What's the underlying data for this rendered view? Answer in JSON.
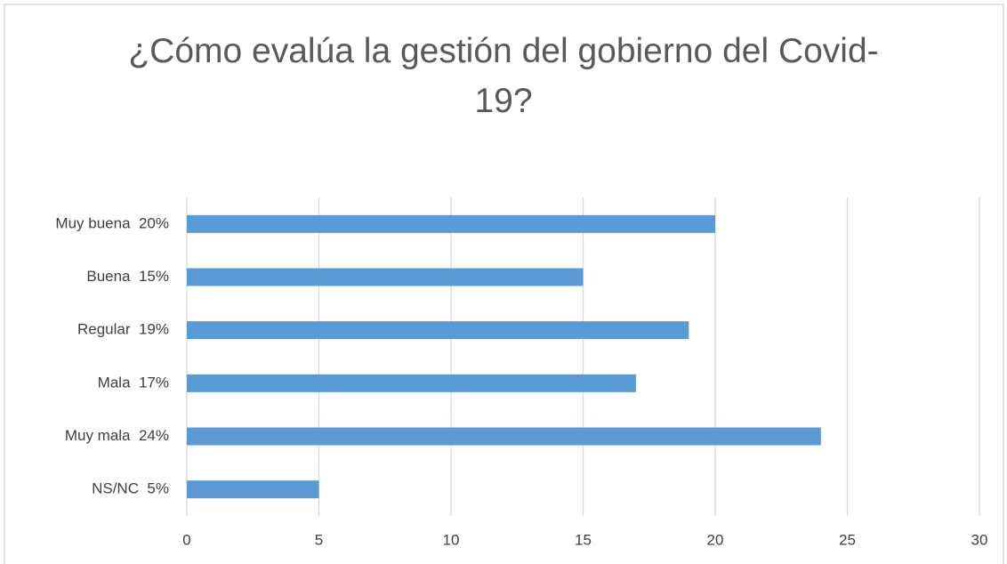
{
  "chart_data": {
    "type": "barh",
    "title": "¿Cómo evalúa la gestión del gobierno del Covid-19?",
    "categories": [
      "Muy buena  20%",
      "Buena  15%",
      "Regular  19%",
      "Mala  17%",
      "Muy mala  24%",
      "NS/NC  5%"
    ],
    "values": [
      20,
      15,
      19,
      17,
      24,
      5
    ],
    "color": "#5b9bd5",
    "xlim": [
      0,
      30
    ],
    "xticks": [
      0,
      5,
      10,
      15,
      20,
      25,
      30
    ],
    "grid": true
  }
}
